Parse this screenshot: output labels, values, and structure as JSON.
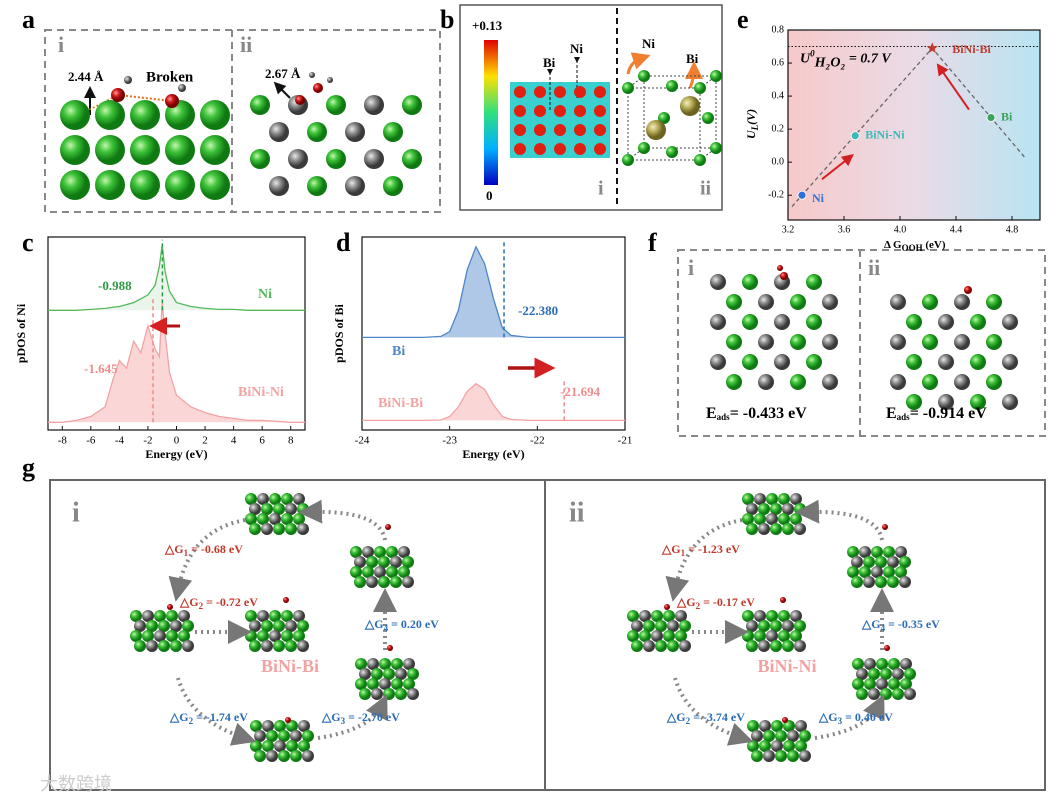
{
  "panel_a": {
    "label": "a",
    "sub_i": "i",
    "sub_ii": "ii",
    "dist_i": "2.44 Å",
    "broken": "Broken",
    "dist_ii": "2.67 Å"
  },
  "panel_b": {
    "label": "b",
    "scale_max": "+0.13",
    "scale_min": "0",
    "bi_i": "Bi",
    "ni_i": "Ni",
    "sub_i": "i",
    "ni_ii": "Ni",
    "bi_ii": "Bi",
    "sub_ii": "ii"
  },
  "chart_data": [
    {
      "panel": "c",
      "type": "line",
      "ylabel": "pDOS of Ni",
      "xlabel": "Energy (eV)",
      "xlim": [
        -9,
        9
      ],
      "xticks": [
        -8,
        -6,
        -4,
        -2,
        0,
        2,
        4,
        6,
        8
      ],
      "ylim": [
        0,
        10
      ],
      "x": [
        -9,
        -8,
        -7,
        -6,
        -5,
        -4.5,
        -4,
        -3.5,
        -3,
        -2.5,
        -2,
        -1.5,
        -1.2,
        -1,
        -0.8,
        -0.5,
        0,
        1,
        2,
        3,
        4,
        5,
        6,
        7,
        8,
        9
      ],
      "series": [
        {
          "name": "Ni",
          "color": "#55b85a",
          "values": [
            6.2,
            6.2,
            6.2,
            6.25,
            6.3,
            6.35,
            6.4,
            6.5,
            6.6,
            6.8,
            7.0,
            7.5,
            8.5,
            9.6,
            8.2,
            7.2,
            6.6,
            6.4,
            6.3,
            6.25,
            6.25,
            6.2,
            6.2,
            6.2,
            6.2,
            6.2
          ]
        },
        {
          "name": "BiNi-Ni",
          "color": "#f3a3a3",
          "values": [
            0.4,
            0.4,
            0.5,
            0.7,
            1.2,
            2.5,
            3.6,
            3.2,
            4.6,
            4.0,
            5.4,
            4.2,
            3.8,
            6.6,
            5.0,
            3.0,
            1.8,
            1.2,
            0.9,
            0.7,
            0.6,
            0.5,
            0.5,
            0.45,
            0.4,
            0.4
          ]
        }
      ],
      "centers": [
        {
          "value": -0.988,
          "label": "-0.988",
          "color": "#2e9a46"
        },
        {
          "value": -1.645,
          "label": "-1.645",
          "color": "#f08c8c"
        }
      ]
    },
    {
      "panel": "d",
      "type": "line",
      "ylabel": "pDOS of Bi",
      "xlabel": "Energy (eV)",
      "xlim": [
        -24,
        -21
      ],
      "xticks": [
        -24,
        -23,
        -22,
        -21
      ],
      "ylim": [
        0,
        10
      ],
      "x": [
        -24,
        -23.6,
        -23.3,
        -23.1,
        -23.0,
        -22.9,
        -22.8,
        -22.7,
        -22.6,
        -22.5,
        -22.4,
        -22.3,
        -22.1,
        -21.8,
        -21.5,
        -21
      ],
      "series": [
        {
          "name": "Bi",
          "color": "#4f86c9",
          "values": [
            4.8,
            4.8,
            4.8,
            4.85,
            5.1,
            6.2,
            8.3,
            9.5,
            8.6,
            6.8,
            5.3,
            4.9,
            4.8,
            4.8,
            4.8,
            4.8
          ]
        },
        {
          "name": "BiNi-Bi",
          "color": "#f3a3a3",
          "values": [
            0.5,
            0.5,
            0.5,
            0.52,
            0.7,
            1.2,
            2.0,
            2.4,
            2.1,
            1.3,
            0.7,
            0.55,
            0.5,
            0.5,
            0.5,
            0.5
          ]
        }
      ],
      "centers": [
        {
          "value": -22.38,
          "label": "-22.380",
          "color": "#2a6db5"
        },
        {
          "value": -21.694,
          "label": "-21.694",
          "color": "#f08c8c"
        }
      ]
    },
    {
      "panel": "e",
      "type": "scatter",
      "xlabel": {
        "main": "Δ G",
        "sub": "OOH",
        "unit": " (eV)"
      },
      "ylabel": {
        "main": "U",
        "sub": "L",
        "unit": "(V)"
      },
      "xlim": [
        3.2,
        5.0
      ],
      "ylim": [
        -0.35,
        0.8
      ],
      "xticks": [
        3.2,
        3.6,
        {
          "value": 4,
          "label": "4.0"
        },
        4.4,
        4.8
      ],
      "yticks": [
        -0.2,
        {
          "value": 0,
          "label": "0.0"
        },
        0.2,
        0.4,
        0.6,
        0.8
      ],
      "series": [
        {
          "name": "Ni",
          "color": "#2f6fd6",
          "x": [
            3.3
          ],
          "values": [
            -0.2
          ]
        },
        {
          "name": "BiNi-Ni",
          "color": "#3bb8b8",
          "x": [
            3.68
          ],
          "values": [
            0.16
          ]
        },
        {
          "name": "BiNi-Bi",
          "color": "#c0392b",
          "x": [
            4.23
          ],
          "values": [
            0.69
          ]
        },
        {
          "name": "Bi",
          "color": "#3aa35a",
          "x": [
            4.65
          ],
          "values": [
            0.27
          ]
        }
      ],
      "reference": {
        "value": 0.7,
        "symbol": "U",
        "sup": "0",
        "sub": "H₂O₂",
        "text": " = 0.7 V"
      }
    }
  ],
  "panel_f": {
    "label": "f",
    "items": [
      {
        "label": "i",
        "symbol": "E",
        "sub": "ads",
        "text": "= -0.433 eV"
      },
      {
        "label": "ii",
        "symbol": "E",
        "sub": "ads",
        "text": "= -0.914 eV"
      }
    ]
  },
  "panel_g": {
    "label": "g",
    "halves": [
      {
        "label": "i",
        "center": "BiNi-Bi",
        "steps": [
          {
            "prefix": "△G",
            "sub": "1",
            "text": " = -0.68 eV"
          },
          {
            "prefix": "△G",
            "sub": "2",
            "text": " = -0.72 eV"
          },
          {
            "prefix": "△G",
            "sub": "4",
            "text": " = 0.20 eV"
          },
          {
            "prefix": "△G",
            "sub": "2",
            "text": " = -1.74 eV"
          },
          {
            "prefix": "△G",
            "sub": "3",
            "text": " = -2.70 eV"
          }
        ]
      },
      {
        "label": "ii",
        "center": "BiNi-Ni",
        "steps": [
          {
            "prefix": "△G",
            "sub": "1",
            "text": " = -1.23 eV"
          },
          {
            "prefix": "△G",
            "sub": "2",
            "text": " = -0.17 eV"
          },
          {
            "prefix": "△G",
            "sub": "4",
            "text": " = -0.35 eV"
          },
          {
            "prefix": "△G",
            "sub": "2",
            "text": " = -3.74 eV"
          },
          {
            "prefix": "△G",
            "sub": "3",
            "text": " = 0.40 eV"
          }
        ]
      }
    ]
  },
  "watermark": "大数跨境"
}
